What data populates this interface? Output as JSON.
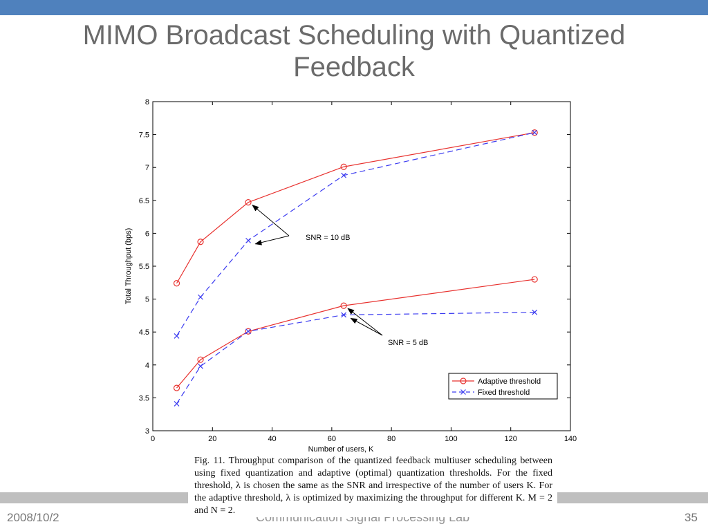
{
  "slide": {
    "title": "MIMO Broadcast Scheduling with Quantized Feedback",
    "footer_date": "2008/10/2",
    "footer_lab": "Communication Signal Processing Lab",
    "page_number": "35",
    "caption": "Fig. 11.   Throughput comparison of the quantized feedback multiuser scheduling between using fixed quantization and adaptive (optimal) quantization thresholds. For the fixed threshold, λ is chosen the same as the SNR and irrespective of the number of users K. For the adaptive threshold, λ is optimized by maximizing the throughput for different K. M = 2 and N = 2."
  },
  "colors": {
    "accent": "#4f81bd",
    "adaptive": "#e8322f",
    "fixed": "#3b3bf0"
  },
  "chart_data": {
    "type": "line",
    "xlabel": "Number of users, K",
    "ylabel": "Total Throughput (bps)",
    "xlim": [
      0,
      140
    ],
    "ylim": [
      3,
      8
    ],
    "xticks": [
      0,
      20,
      40,
      60,
      80,
      100,
      120,
      140
    ],
    "yticks": [
      3,
      3.5,
      4,
      4.5,
      5,
      5.5,
      6,
      6.5,
      7,
      7.5,
      8
    ],
    "x": [
      8,
      16,
      32,
      64,
      128
    ],
    "series": [
      {
        "name": "Adaptive threshold",
        "group": "SNR = 10 dB",
        "marker": "circle",
        "style": "solid",
        "values": [
          5.24,
          5.87,
          6.47,
          7.01,
          7.53
        ]
      },
      {
        "name": "Fixed threshold",
        "group": "SNR = 10 dB",
        "marker": "x",
        "style": "dashed",
        "values": [
          4.44,
          5.03,
          5.89,
          6.88,
          7.53
        ]
      },
      {
        "name": "Adaptive threshold",
        "group": "SNR = 5 dB",
        "marker": "circle",
        "style": "solid",
        "values": [
          3.65,
          4.08,
          4.51,
          4.9,
          5.3
        ]
      },
      {
        "name": "Fixed threshold",
        "group": "SNR = 5 dB",
        "marker": "x",
        "style": "dashed",
        "values": [
          3.41,
          3.98,
          4.51,
          4.76,
          4.8
        ]
      }
    ],
    "legend": {
      "position": "bottom-right",
      "entries": [
        "Adaptive threshold",
        "Fixed threshold"
      ]
    },
    "annotations": [
      {
        "text": "SNR = 10 dB",
        "points_to": [
          [
            32,
            6.47
          ],
          [
            33,
            5.88
          ]
        ]
      },
      {
        "text": "SNR = 5 dB",
        "points_to": [
          [
            64,
            4.9
          ],
          [
            65,
            4.75
          ]
        ]
      }
    ],
    "grid": false
  }
}
